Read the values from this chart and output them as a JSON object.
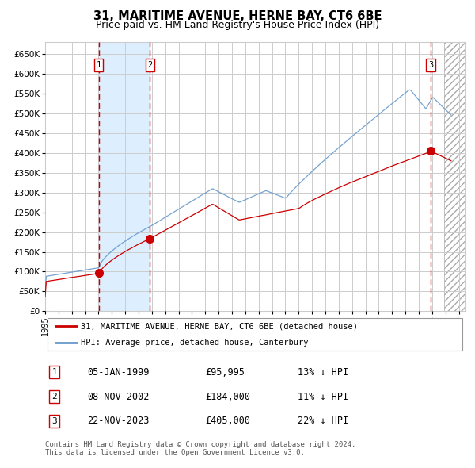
{
  "title": "31, MARITIME AVENUE, HERNE BAY, CT6 6BE",
  "subtitle": "Price paid vs. HM Land Registry's House Price Index (HPI)",
  "title_fontsize": 10.5,
  "subtitle_fontsize": 9,
  "ylim": [
    0,
    680000
  ],
  "yticks": [
    0,
    50000,
    100000,
    150000,
    200000,
    250000,
    300000,
    350000,
    400000,
    450000,
    500000,
    550000,
    600000,
    650000
  ],
  "xlim_start": 1995.0,
  "xlim_end": 2026.5,
  "sale_dates": [
    1999.02,
    2002.85,
    2023.9
  ],
  "sale_prices": [
    95995,
    184000,
    405000
  ],
  "sale_labels": [
    "1",
    "2",
    "3"
  ],
  "shade_x0": 1999.02,
  "shade_x1": 2002.85,
  "red_color": "#cc0000",
  "blue_color": "#6699cc",
  "shade_color": "#ddeeff",
  "grid_color": "#cccccc",
  "legend_label_red": "31, MARITIME AVENUE, HERNE BAY, CT6 6BE (detached house)",
  "legend_label_blue": "HPI: Average price, detached house, Canterbury",
  "table_data": [
    [
      "1",
      "05-JAN-1999",
      "£95,995",
      "13% ↓ HPI"
    ],
    [
      "2",
      "08-NOV-2002",
      "£184,000",
      "11% ↓ HPI"
    ],
    [
      "3",
      "22-NOV-2023",
      "£405,000",
      "22% ↓ HPI"
    ]
  ],
  "footnote": "Contains HM Land Registry data © Crown copyright and database right 2024.\nThis data is licensed under the Open Government Licence v3.0.",
  "hatch_region_start": 2024.9,
  "hatch_region_end": 2026.5
}
